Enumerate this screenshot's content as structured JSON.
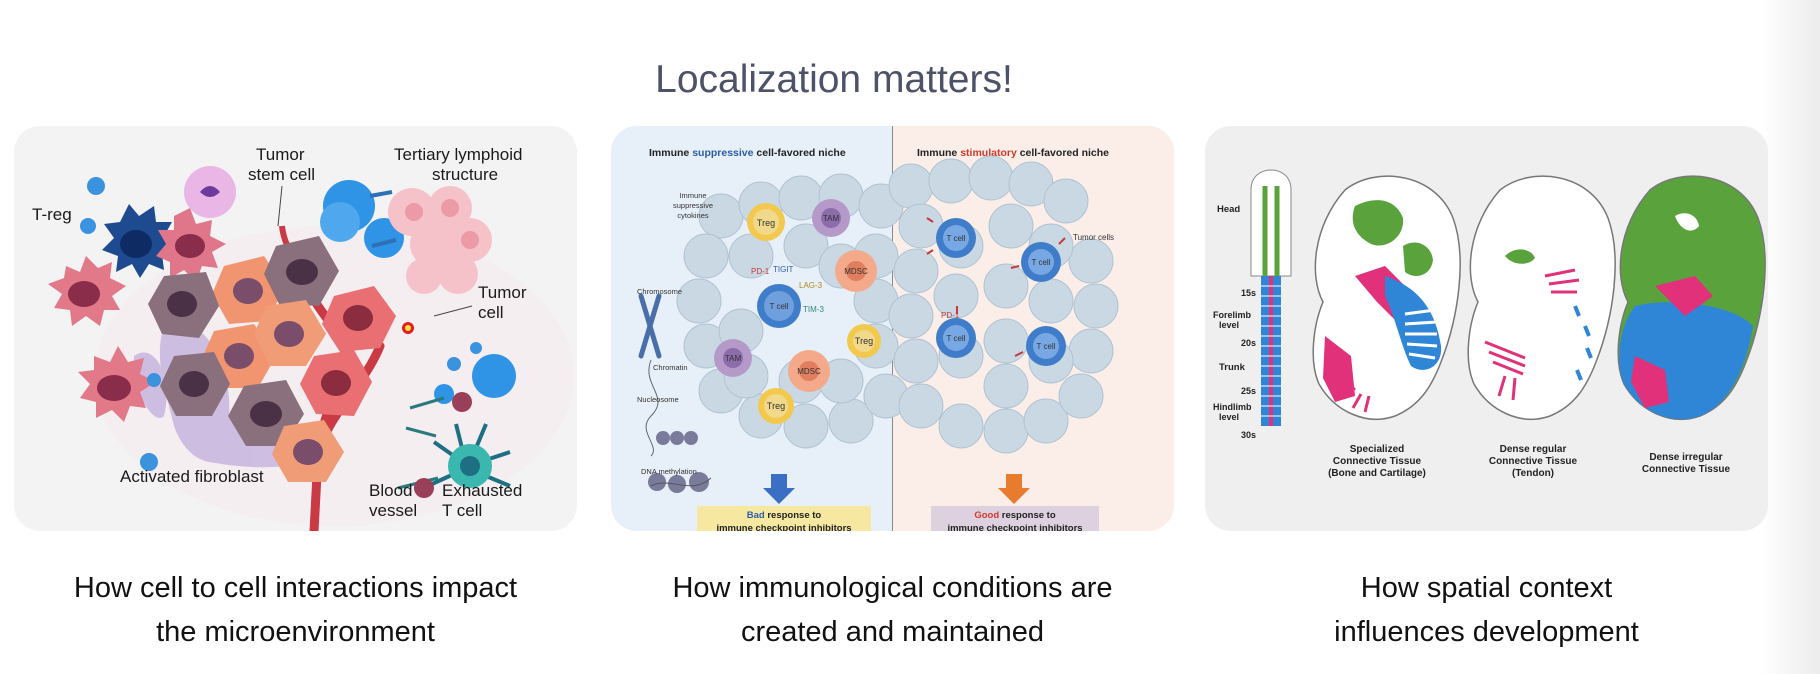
{
  "slide": {
    "title": "Localization matters!"
  },
  "panel1": {
    "labels": {
      "treg": "T-reg",
      "tumor_stem_1": "Tumor",
      "tumor_stem_2": "stem cell",
      "tls_1": "Tertiary lymphoid",
      "tls_2": "structure",
      "tumor_cell_1": "Tumor",
      "tumor_cell_2": "cell",
      "fibroblast": "Activated fibroblast",
      "blood_1": "Blood",
      "blood_2": "vessel",
      "exhausted_1": "Exhausted",
      "exhausted_2": "T cell"
    },
    "caption_line1": "How cell to cell interactions impact",
    "caption_line2": "the microenvironment"
  },
  "panel2": {
    "left_heading_pre": "Immune ",
    "left_heading_key": "suppressive",
    "left_heading_post": " cell-favored niche",
    "right_heading_pre": "Immune ",
    "right_heading_key": "stimulatory",
    "right_heading_post": " cell-favored niche",
    "cytokines_1": "Immune",
    "cytokines_2": "suppressive",
    "cytokines_3": "cytokines",
    "chromosome": "Chromosome",
    "chromatin": "Chromatin",
    "nucleosome": "Nucleosome",
    "dna_methylation": "DNA methylation",
    "tumor_cells": "Tumor cells",
    "treg": "Treg",
    "tam": "TAM",
    "mdsc": "MDSC",
    "tcell": "T cell",
    "pd1": "PD-1",
    "tigit": "TIGIT",
    "lag3": "LAG-3",
    "tim3": "TIM-3",
    "bad": "Bad",
    "good": "Good",
    "response_rest": " response to",
    "response_line2": "immune checkpoint inhibitors",
    "colors": {
      "suppressive": "#2b5ea8",
      "stimulatory": "#d23a2a"
    }
  },
  "panel3": {
    "head": "Head",
    "forelimb_1": "Forelimb",
    "forelimb_2": "level",
    "trunk": "Trunk",
    "hindlimb_1": "Hindlimb",
    "hindlimb_2": "level",
    "stage_15s": "15s",
    "stage_20s": "20s",
    "stage_25s": "25s",
    "stage_30s": "30s",
    "emb1_1": "Specialized",
    "emb1_2": "Connective Tissue",
    "emb1_3": "(Bone and Cartilage)",
    "emb2_1": "Dense regular",
    "emb2_2": "Connective Tissue",
    "emb2_3": "(Tendon)",
    "emb3_1": "Dense irregular",
    "emb3_2": "Connective Tissue",
    "colors": {
      "bone": "#2f86d6",
      "tendon": "#e0317a",
      "irregular": "#5aa33c"
    },
    "caption_line1": "How spatial context",
    "caption_line2": "influences development"
  }
}
